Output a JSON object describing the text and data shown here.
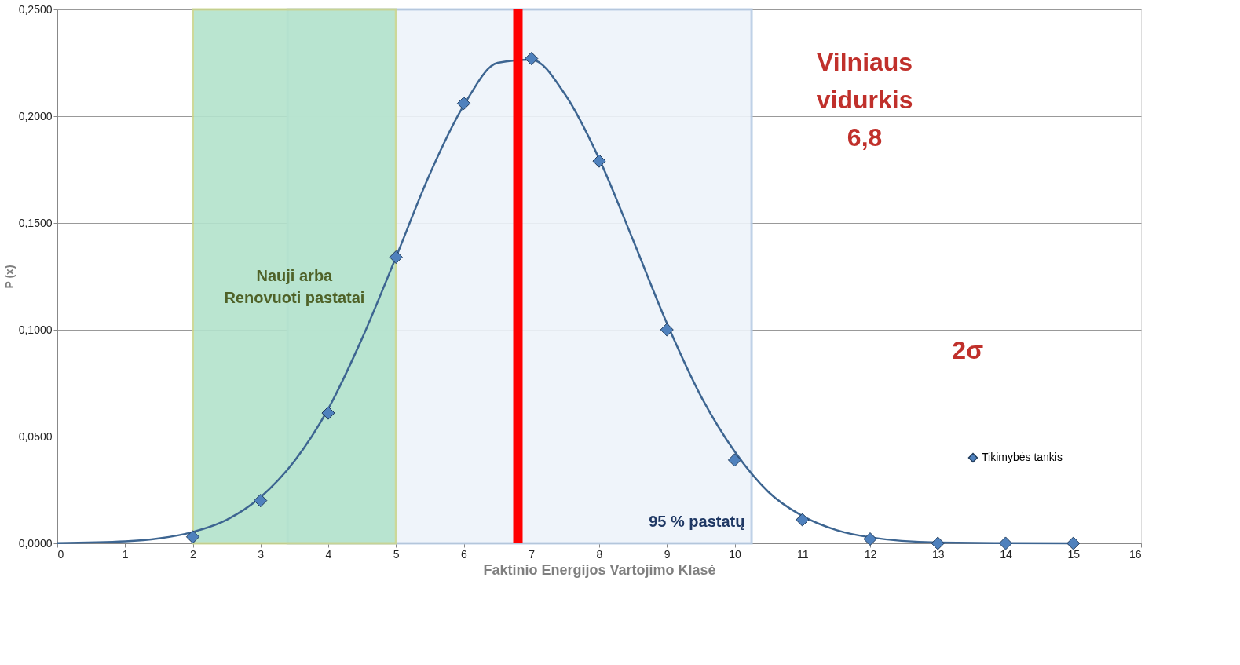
{
  "chart_data": {
    "type": "scatter",
    "xlabel": "Faktinio Energijos Vartojimo Klasė",
    "ylabel": "P (x)",
    "xlim": [
      0,
      16
    ],
    "xticks": [
      0,
      1,
      2,
      3,
      4,
      5,
      6,
      7,
      8,
      9,
      10,
      11,
      12,
      13,
      14,
      15,
      16
    ],
    "ylim": [
      0,
      0.25
    ],
    "yticks": [
      {
        "value": 0,
        "label": "0,0000"
      },
      {
        "value": 0.05,
        "label": "0,0500"
      },
      {
        "value": 0.1,
        "label": "0,1000"
      },
      {
        "value": 0.15,
        "label": "0,1500"
      },
      {
        "value": 0.2,
        "label": "0,2000"
      },
      {
        "value": 0.25,
        "label": "0,2500"
      }
    ],
    "grid": "y",
    "legend": "bottom right",
    "series": [
      {
        "type": "line",
        "color": "#3d6591",
        "line_style": "solid",
        "marker": "none",
        "x": [
          0,
          1,
          1.5,
          2,
          2.5,
          3,
          3.5,
          4,
          4.5,
          5,
          5.5,
          6,
          6.5,
          7,
          7.5,
          8,
          8.5,
          9,
          9.5,
          10,
          10.5,
          11,
          11.5,
          12,
          13,
          14,
          15
        ],
        "values": [
          0.0001,
          0.0009,
          0.0023,
          0.0053,
          0.011,
          0.0216,
          0.0385,
          0.063,
          0.096,
          0.134,
          0.173,
          0.205,
          0.225,
          0.2265,
          0.21,
          0.18,
          0.142,
          0.103,
          0.069,
          0.043,
          0.024,
          0.0128,
          0.0062,
          0.0028,
          0.0004,
          0.0001,
          0
        ]
      },
      {
        "name": "Tikimybės tankis",
        "marker": "diamond",
        "color": "#4f81bd",
        "x": [
          2,
          3,
          4,
          5,
          6,
          7,
          8,
          9,
          10,
          11,
          12,
          13,
          14,
          15
        ],
        "values": [
          0.003,
          0.02,
          0.061,
          0.134,
          0.206,
          0.227,
          0.179,
          0.1,
          0.039,
          0.011,
          0.002,
          0,
          0,
          0
        ]
      }
    ],
    "bands": [
      {
        "axis": "x",
        "from": 3.4,
        "to": 10.25,
        "label": "95 % pastatų",
        "color": "#eef3fa"
      },
      {
        "axis": "x",
        "from": 2,
        "to": 5,
        "label": "Nauji arba\nRenovuoti pastatai",
        "color": "#b3e3cc"
      }
    ],
    "ref_lines": [
      {
        "axis": "x",
        "value": 6.8,
        "color": "#ff0000"
      }
    ],
    "annotations": [
      "Vilniaus\nvidurkis\n6,8",
      "2σ"
    ]
  }
}
